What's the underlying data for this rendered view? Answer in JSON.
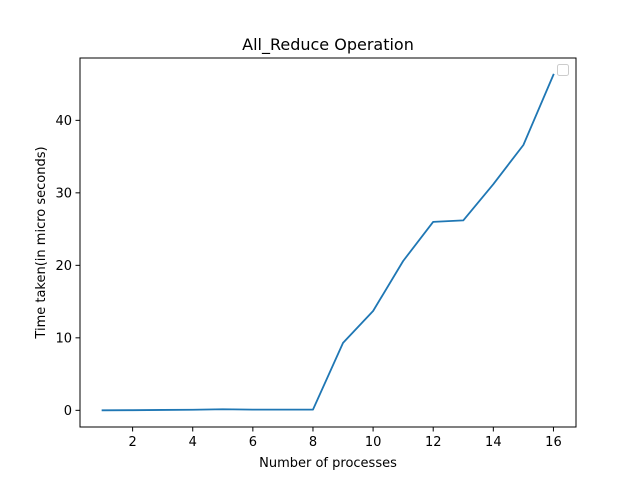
{
  "chart_data": {
    "type": "line",
    "title": "All_Reduce Operation",
    "xlabel": "Number of processes",
    "ylabel": "Time taken(in micro seconds)",
    "xlim": [
      0.25,
      16.75
    ],
    "ylim": [
      -2.3,
      48.6
    ],
    "xticks": [
      2,
      4,
      6,
      8,
      10,
      12,
      14,
      16
    ],
    "yticks": [
      0,
      10,
      20,
      30,
      40
    ],
    "grid": false,
    "legend": {
      "placement": "upper right",
      "entries": []
    },
    "series": [
      {
        "color": "#1f77b4",
        "x": [
          1,
          2,
          3,
          4,
          5,
          6,
          7,
          8,
          9,
          10,
          11,
          12,
          13,
          14,
          15,
          16
        ],
        "values": [
          0.0,
          0.02,
          0.05,
          0.08,
          0.15,
          0.1,
          0.1,
          0.1,
          9.3,
          13.7,
          20.6,
          26.0,
          26.2,
          31.2,
          36.6,
          46.3
        ]
      }
    ]
  }
}
